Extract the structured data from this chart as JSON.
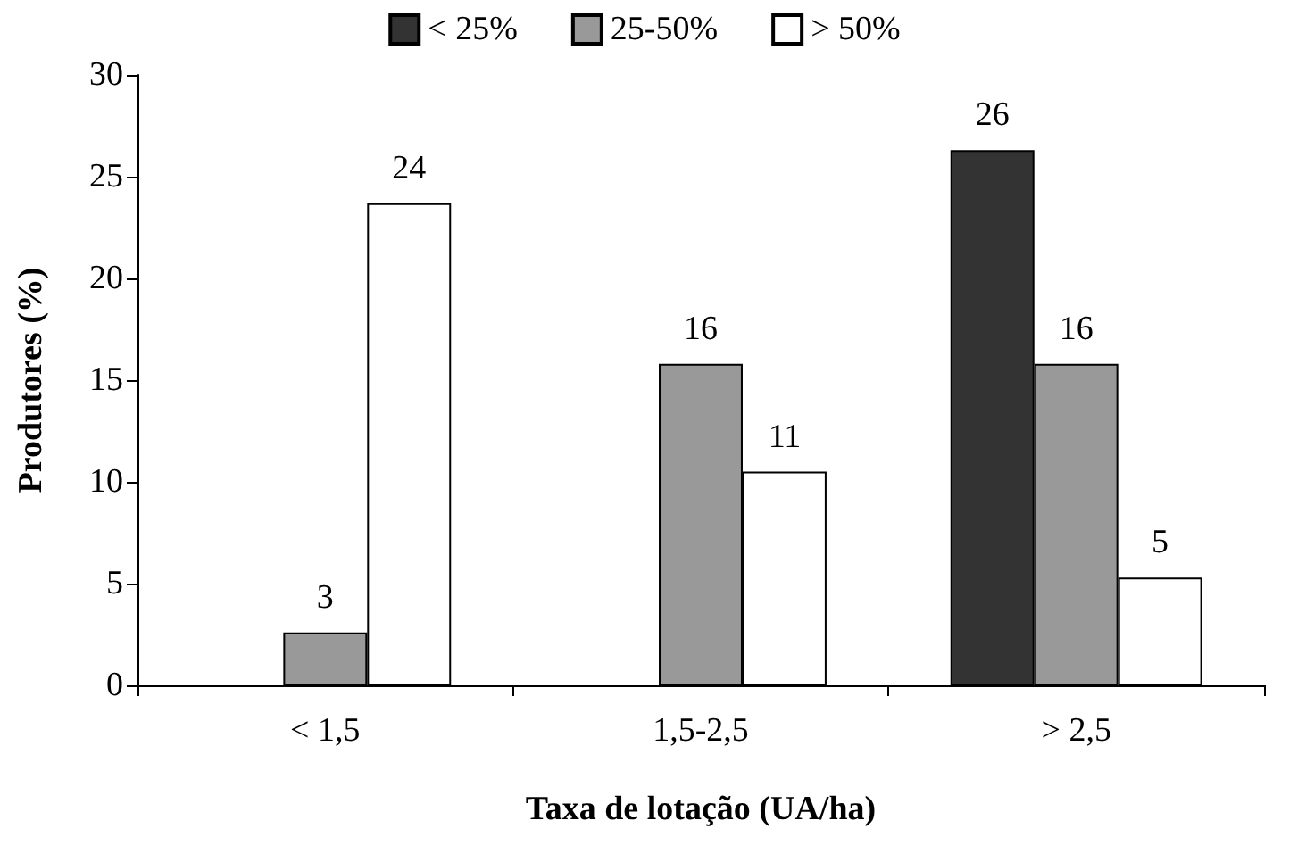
{
  "chart_data": {
    "type": "bar",
    "xlabel": "Taxa de lotação (UA/ha)",
    "ylabel": "Produtores (%)",
    "categories": [
      "< 1,5",
      "1,5-2,5",
      "> 2,5"
    ],
    "series": [
      {
        "name": "< 25%",
        "color": "#333333",
        "values": [
          null,
          null,
          26.3
        ],
        "value_labels": [
          null,
          null,
          "26"
        ]
      },
      {
        "name": "25-50%",
        "color": "#999999",
        "values": [
          2.6,
          15.8,
          15.8
        ],
        "value_labels": [
          "3",
          "16",
          "16"
        ]
      },
      {
        "name": "> 50%",
        "color": "#ffffff",
        "values": [
          23.7,
          10.5,
          5.3
        ],
        "value_labels": [
          "24",
          "11",
          "5"
        ]
      }
    ],
    "ylim": [
      0,
      30
    ],
    "yticks": [
      0,
      5,
      10,
      15,
      20,
      25,
      30
    ],
    "grid": false,
    "legend": "top"
  }
}
